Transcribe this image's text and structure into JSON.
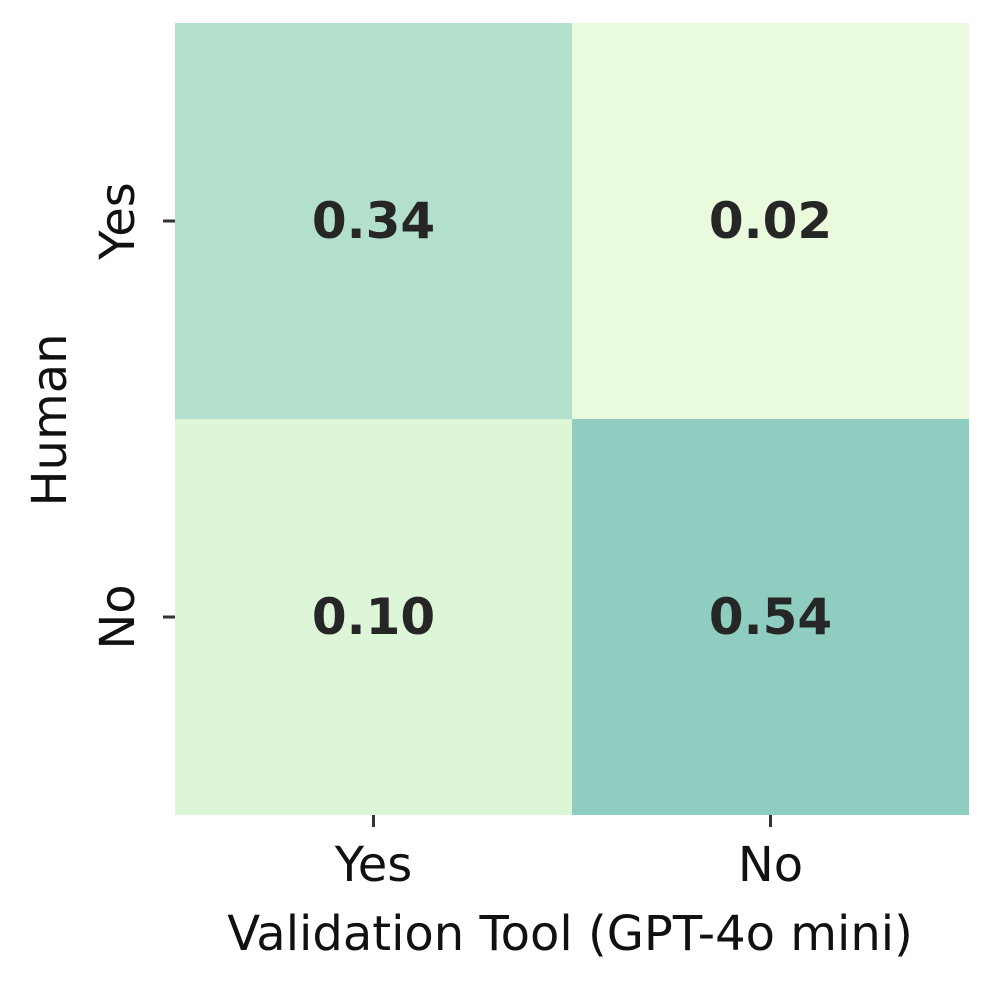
{
  "chart_data": {
    "type": "heatmap",
    "title": "",
    "xlabel": "Validation Tool (GPT-4o mini)",
    "ylabel": "Human",
    "x_categories": [
      "Yes",
      "No"
    ],
    "y_categories": [
      "Yes",
      "No"
    ],
    "values": [
      [
        0.34,
        0.02
      ],
      [
        0.1,
        0.54
      ]
    ],
    "cell_labels": [
      [
        "0.34",
        "0.02"
      ],
      [
        "0.10",
        "0.54"
      ]
    ],
    "cell_colors": [
      [
        "#b2e0cc",
        "#eafadc"
      ],
      [
        "#def6d8",
        "#8ecdbf"
      ]
    ],
    "colorbar": false,
    "grid": false
  }
}
